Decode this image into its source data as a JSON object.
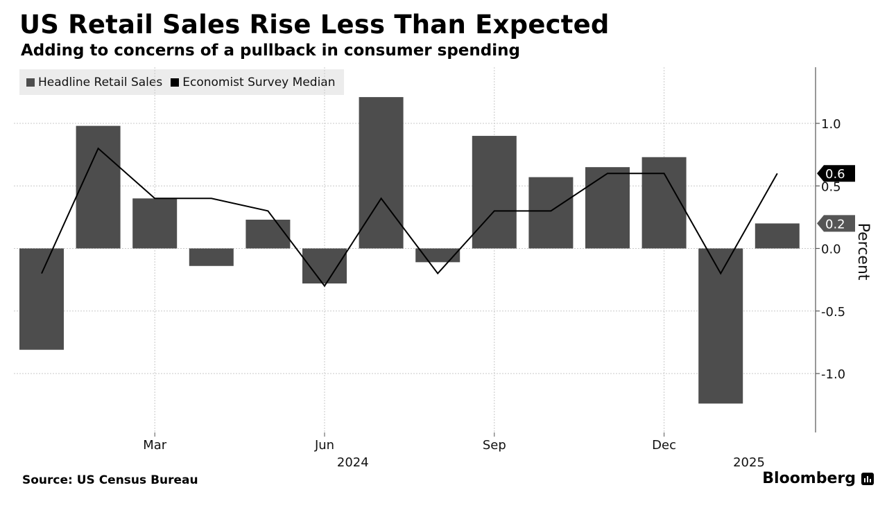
{
  "title": "US Retail Sales Rise Less Than Expected",
  "subtitle": "Adding to concerns of a pullback in consumer spending",
  "legend": {
    "items": [
      {
        "label": "Headline Retail Sales",
        "color": "#4d4d4d"
      },
      {
        "label": "Economist Survey Median",
        "color": "#000000"
      }
    ]
  },
  "source": "Source: US Census Bureau",
  "brand": "Bloomberg",
  "chart_data": {
    "type": "bar",
    "ylabel": "Percent",
    "ylim": [
      -1.45,
      1.45
    ],
    "yticks": [
      1.0,
      0.5,
      0.0,
      -0.5,
      -1.0
    ],
    "ytick_labels": [
      "1.0",
      "0.5",
      "0.0",
      "-0.5",
      "-1.0"
    ],
    "x_tick_labels": [
      {
        "label": "Mar",
        "index": 2
      },
      {
        "label": "Jun",
        "index": 5
      },
      {
        "label": "Sep",
        "index": 8
      },
      {
        "label": "Dec",
        "index": 11
      }
    ],
    "year_labels": [
      {
        "label": "2024",
        "index": 5.5
      },
      {
        "label": "2025",
        "index": 12.5
      }
    ],
    "grid": true,
    "legend_position": "top-left",
    "series": [
      {
        "name": "Headline Retail Sales",
        "type": "bar",
        "color": "#4d4d4d",
        "values": [
          -0.81,
          0.98,
          0.4,
          -0.14,
          0.23,
          -0.28,
          1.21,
          -0.11,
          0.9,
          0.57,
          0.65,
          0.73,
          -1.24,
          0.2
        ]
      },
      {
        "name": "Economist Survey Median",
        "type": "line",
        "color": "#000000",
        "values": [
          -0.2,
          0.8,
          0.4,
          0.4,
          0.3,
          -0.3,
          0.4,
          -0.2,
          0.3,
          0.3,
          0.6,
          0.6,
          -0.2,
          0.6
        ]
      }
    ],
    "end_labels": [
      {
        "label": "0.6",
        "value": 0.6,
        "style": "dark"
      },
      {
        "label": "0.2",
        "value": 0.2,
        "style": "gray"
      }
    ]
  }
}
